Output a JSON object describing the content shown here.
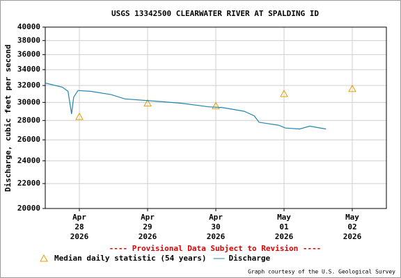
{
  "chart_data": {
    "type": "line",
    "title": "USGS 13342500 CLEARWATER RIVER AT SPALDING ID",
    "y_label": "Discharge, cubic feet per second",
    "annotation": "---- Provisional Data Subject to Revision ----",
    "credit": "Graph courtesy of the U.S. Geological Survey",
    "log_y": true,
    "grid": true,
    "legend": "bottom",
    "xlim": [
      "2026-04-27T12:00",
      "2026-05-02T12:00"
    ],
    "xticks": [
      {
        "value": "2026-04-28T00:00",
        "label": [
          "Apr",
          "28",
          "2026"
        ]
      },
      {
        "value": "2026-04-29T00:00",
        "label": [
          "Apr",
          "29",
          "2026"
        ]
      },
      {
        "value": "2026-04-30T00:00",
        "label": [
          "Apr",
          "30",
          "2026"
        ]
      },
      {
        "value": "2026-05-01T00:00",
        "label": [
          "May",
          "01",
          "2026"
        ]
      },
      {
        "value": "2026-05-02T00:00",
        "label": [
          "May",
          "02",
          "2026"
        ]
      }
    ],
    "ylim": [
      20000,
      40000
    ],
    "yticks": [
      20000,
      22000,
      24000,
      26000,
      28000,
      30000,
      32000,
      34000,
      36000,
      38000,
      40000
    ],
    "series": [
      {
        "name": "Median daily statistic (54 years)",
        "color": "#e6a000",
        "marker": "triangle",
        "x": [
          "2026-04-28T00:00",
          "2026-04-29T00:00",
          "2026-04-30T00:00",
          "2026-05-01T00:00",
          "2026-05-02T00:00"
        ],
        "values": [
          28400,
          29900,
          29600,
          31000,
          31600
        ]
      },
      {
        "name": "Discharge",
        "color": "#1f85b0",
        "marker": "line",
        "x": [
          "2026-04-27T12:00",
          "2026-04-27T18:00",
          "2026-04-27T20:00",
          "2026-04-27T21:15",
          "2026-04-27T22:00",
          "2026-04-27T23:30",
          "2026-04-28T04:00",
          "2026-04-28T11:15",
          "2026-04-28T16:00",
          "2026-04-29T04:30",
          "2026-04-29T12:00",
          "2026-04-29T21:30",
          "2026-04-30T02:30",
          "2026-04-30T10:00",
          "2026-04-30T13:30",
          "2026-04-30T15:15",
          "2026-04-30T22:00",
          "2026-05-01T00:30",
          "2026-05-01T05:30",
          "2026-05-01T09:00",
          "2026-05-01T14:45"
        ],
        "values": [
          32300,
          31800,
          31300,
          28700,
          30600,
          31400,
          31300,
          30900,
          30400,
          30100,
          29900,
          29500,
          29400,
          29000,
          28500,
          27800,
          27500,
          27200,
          27100,
          27400,
          27100
        ]
      }
    ]
  }
}
